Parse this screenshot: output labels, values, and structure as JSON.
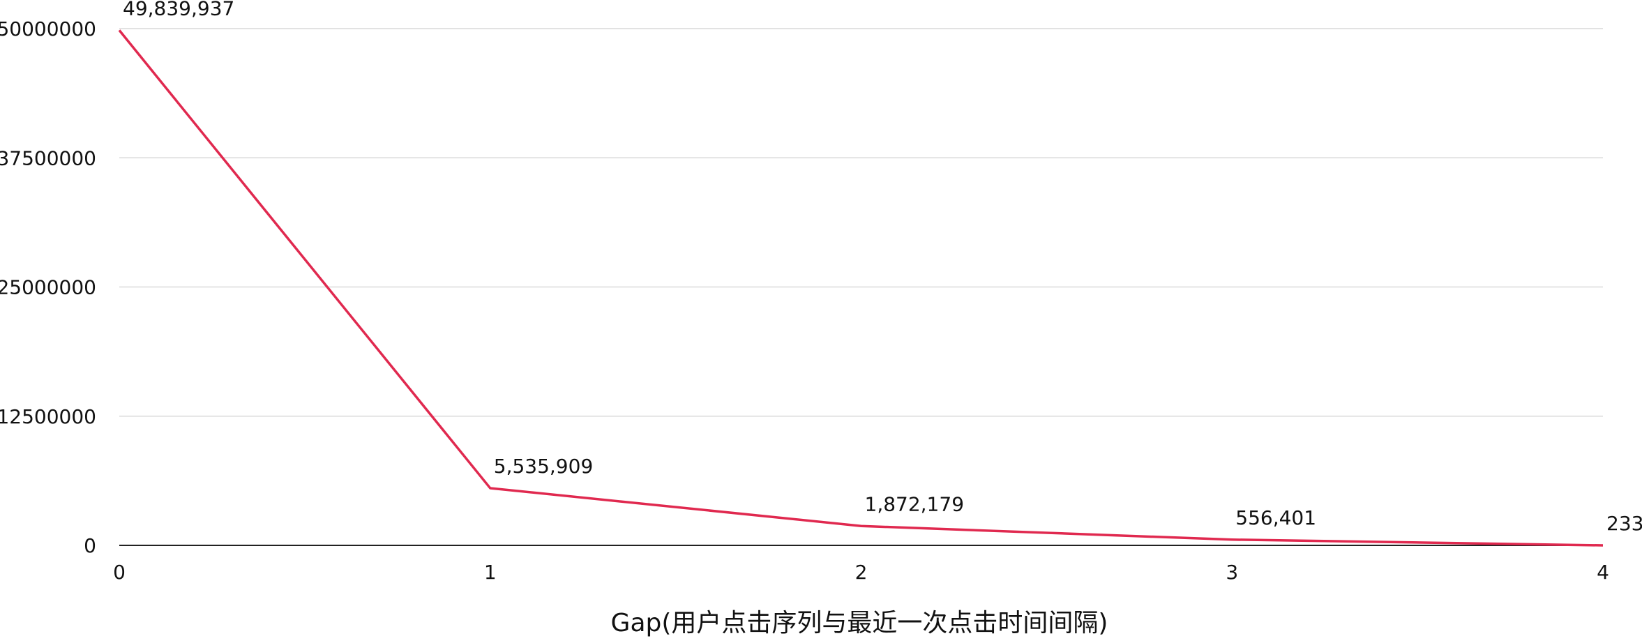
{
  "chart_data": {
    "type": "line",
    "title": "",
    "xlabel": "Gap(用户点击序列与最近一次点击时间间隔)",
    "ylabel": "",
    "x": [
      0,
      1,
      2,
      3,
      4
    ],
    "x_tick_labels": [
      "0",
      "1",
      "2",
      "3",
      "4"
    ],
    "y_tick_labels": [
      "0",
      "12500000",
      "25000000",
      "37500000",
      "50000000"
    ],
    "y_ticks": [
      0,
      12500000,
      25000000,
      37500000,
      50000000
    ],
    "ylim": [
      0,
      50000000
    ],
    "xlim": [
      0,
      4
    ],
    "grid": true,
    "series": [
      {
        "values": [
          49839937,
          5535909,
          1872179,
          556401,
          233
        ],
        "data_labels": [
          "49,839,937",
          "5,535,909",
          "1,872,179",
          "556,401",
          "233"
        ]
      }
    ],
    "colors": {
      "line": "#e0294f",
      "grid": "#d9d9d9",
      "axis": "#222222"
    }
  }
}
